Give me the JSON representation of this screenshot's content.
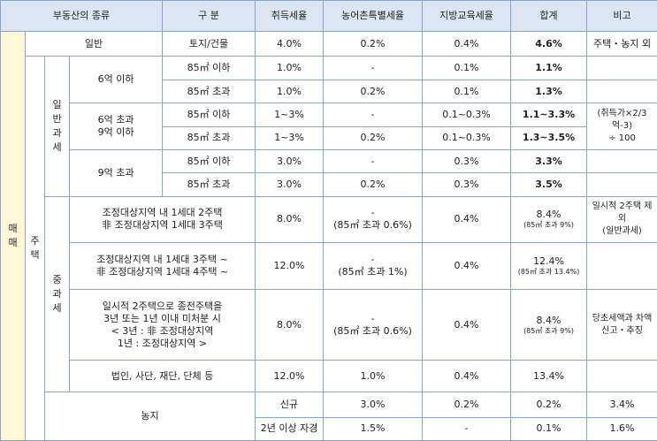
{
  "headers": [
    "부동산의 종류",
    "구 분",
    "취득세율",
    "농어촌특별세율",
    "지방교육세율",
    "합계",
    "비고"
  ],
  "cats": {
    "maemae": "매매",
    "jutaek": "주택",
    "ilban_gwase": "일반과세",
    "jung_gwase": "중과세",
    "nongji": "농지"
  },
  "row_general": {
    "kind": "일반",
    "sub": "토지/건물",
    "acq": "4.0%",
    "farm": "0.2%",
    "edu": "0.4%",
    "total": "4.6%",
    "note": "주택・농지 외"
  },
  "price_bands": {
    "b1": "6억 이하",
    "b2a": "6억 초과",
    "b2b": "9억 이하",
    "b3": "9억 초과"
  },
  "area": {
    "under": "85㎡ 이하",
    "over": "85㎡ 초과"
  },
  "ilban_rows": [
    {
      "acq": "1.0%",
      "farm": "-",
      "edu": "0.1%",
      "total": "1.1%"
    },
    {
      "acq": "1.0%",
      "farm": "0.2%",
      "edu": "0.1%",
      "total": "1.3%"
    },
    {
      "acq": "1~3%",
      "farm": "-",
      "edu": "0.1~0.3%",
      "total": "1.1~3.3%"
    },
    {
      "acq": "1~3%",
      "farm": "0.2%",
      "edu": "0.1~0.3%",
      "total": "1.3~3.5%"
    },
    {
      "acq": "3.0%",
      "farm": "-",
      "edu": "0.3%",
      "total": "3.3%"
    },
    {
      "acq": "3.0%",
      "farm": "0.2%",
      "edu": "0.3%",
      "total": "3.5%"
    }
  ],
  "ilban_note": {
    "l1": "(취득가×2/3억-3)",
    "l2": "÷ 100"
  },
  "jung_rows": [
    {
      "desc": [
        "조정대상지역 내 1세대 2주택",
        "非 조정대상지역 1세대 3주택"
      ],
      "acq": "8.0%",
      "farm_dash": "-",
      "farm": "(85㎡ 초과 0.6%)",
      "edu": "0.4%",
      "total": "8.4%",
      "total_small": "(85㎡ 초과 9%)",
      "note": [
        "일시적 2주택 제외",
        "(일반과세)"
      ]
    },
    {
      "desc": [
        "조정대상지역 내 1세대 3주택 ~",
        "非 조정대상지역 1세대 4주택 ~"
      ],
      "acq": "12.0%",
      "farm_dash": "-",
      "farm": "(85㎡ 초과 1%)",
      "edu": "0.4%",
      "total": "12.4%",
      "total_small": "(85㎡ 초과 13.4%)",
      "note": []
    },
    {
      "desc": [
        "일시적 2주택으로 종전주택을",
        "3년 또는 1년 이내 미처분 시",
        "< 3년 : 非 조정대상지역",
        "1년 : 조정대상지역 >"
      ],
      "acq": "8.0%",
      "farm_dash": "-",
      "farm": "(85㎡ 초과 0.6%)",
      "edu": "0.4%",
      "total": "8.4%",
      "total_small": "(85㎡ 초과 9%)",
      "note": [
        "당초세액과 차액",
        "신고・추징"
      ]
    },
    {
      "desc": [
        "법인, 사단, 재단, 단체 등"
      ],
      "acq": "12.0%",
      "farm_dash": "",
      "farm": "1.0%",
      "edu": "0.4%",
      "total": "13.4%",
      "total_small": "",
      "note": []
    }
  ],
  "nongji_rows": [
    {
      "sub": "신규",
      "acq": "3.0%",
      "farm": "0.2%",
      "edu": "0.2%",
      "total": "3.4%"
    },
    {
      "sub": "2년 이상 자경",
      "acq": "1.5%",
      "farm": "-",
      "edu": "0.1%",
      "total": "1.6%"
    }
  ]
}
